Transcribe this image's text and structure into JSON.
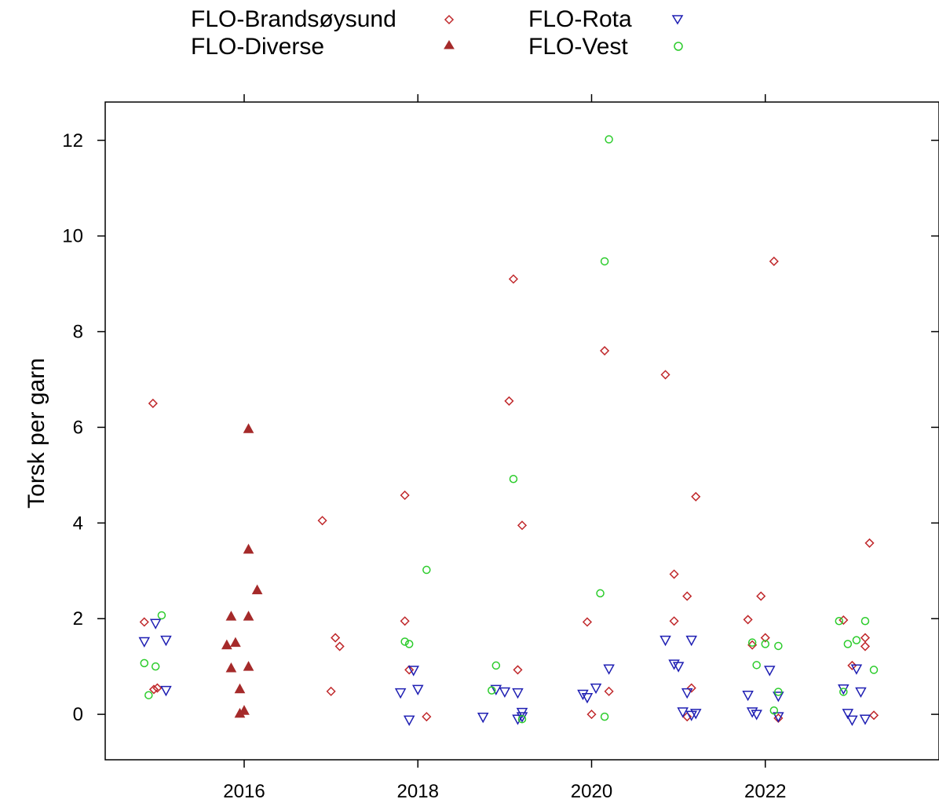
{
  "chart_data": {
    "type": "scatter",
    "title": "",
    "xlabel": "",
    "ylabel": "Torsk per garn",
    "xlim": [
      2014.4,
      2024.0
    ],
    "ylim": [
      -0.95,
      12.8
    ],
    "x_ticks": [
      2016,
      2018,
      2020,
      2022
    ],
    "y_ticks": [
      0,
      2,
      4,
      6,
      8,
      10,
      12
    ],
    "grid": false,
    "legend_position": "top",
    "series": [
      {
        "name": "FLO-Brandsøysund",
        "marker": "diamond-open",
        "color": "#c0282b",
        "points": [
          [
            2014.85,
            1.93
          ],
          [
            2014.95,
            6.5
          ],
          [
            2014.96,
            0.52
          ],
          [
            2015.0,
            0.55
          ],
          [
            2016.9,
            4.05
          ],
          [
            2017.0,
            0.48
          ],
          [
            2017.05,
            1.6
          ],
          [
            2017.1,
            1.42
          ],
          [
            2017.85,
            4.58
          ],
          [
            2017.85,
            1.95
          ],
          [
            2017.9,
            0.93
          ],
          [
            2018.1,
            -0.05
          ],
          [
            2019.05,
            6.55
          ],
          [
            2019.1,
            9.1
          ],
          [
            2019.15,
            0.93
          ],
          [
            2019.2,
            3.95
          ],
          [
            2019.95,
            1.93
          ],
          [
            2020.0,
            0.0
          ],
          [
            2020.15,
            7.6
          ],
          [
            2020.2,
            0.48
          ],
          [
            2020.85,
            7.1
          ],
          [
            2020.95,
            2.93
          ],
          [
            2020.95,
            1.95
          ],
          [
            2021.1,
            2.47
          ],
          [
            2021.1,
            -0.05
          ],
          [
            2021.15,
            0.55
          ],
          [
            2021.2,
            4.55
          ],
          [
            2021.8,
            1.98
          ],
          [
            2021.85,
            1.45
          ],
          [
            2021.95,
            2.47
          ],
          [
            2022.0,
            1.6
          ],
          [
            2022.1,
            9.47
          ],
          [
            2022.15,
            -0.08
          ],
          [
            2022.9,
            1.97
          ],
          [
            2023.0,
            1.02
          ],
          [
            2023.15,
            1.6
          ],
          [
            2023.15,
            1.42
          ],
          [
            2023.2,
            3.58
          ],
          [
            2023.25,
            -0.02
          ]
        ]
      },
      {
        "name": "FLO-Diverse",
        "marker": "triangle-filled",
        "color": "#a52a2a",
        "points": [
          [
            2015.8,
            1.45
          ],
          [
            2015.85,
            2.05
          ],
          [
            2015.85,
            0.97
          ],
          [
            2015.9,
            1.5
          ],
          [
            2015.95,
            0.02
          ],
          [
            2015.95,
            0.53
          ],
          [
            2016.0,
            0.08
          ],
          [
            2016.05,
            5.97
          ],
          [
            2016.05,
            3.45
          ],
          [
            2016.05,
            2.05
          ],
          [
            2016.05,
            1.0
          ],
          [
            2016.15,
            2.6
          ]
        ]
      },
      {
        "name": "FLO-Rota",
        "marker": "triangle-down-open",
        "color": "#1f1fb3",
        "points": [
          [
            2014.85,
            1.52
          ],
          [
            2014.98,
            1.9
          ],
          [
            2015.1,
            1.55
          ],
          [
            2015.1,
            0.5
          ],
          [
            2017.8,
            0.45
          ],
          [
            2017.9,
            -0.12
          ],
          [
            2017.95,
            0.92
          ],
          [
            2018.0,
            0.52
          ],
          [
            2018.75,
            -0.06
          ],
          [
            2018.9,
            0.52
          ],
          [
            2019.0,
            0.47
          ],
          [
            2019.15,
            0.45
          ],
          [
            2019.15,
            -0.1
          ],
          [
            2019.2,
            0.04
          ],
          [
            2019.2,
            -0.05
          ],
          [
            2019.9,
            0.42
          ],
          [
            2019.95,
            0.35
          ],
          [
            2020.05,
            0.55
          ],
          [
            2020.2,
            0.95
          ],
          [
            2020.85,
            1.55
          ],
          [
            2020.95,
            1.05
          ],
          [
            2021.0,
            1.0
          ],
          [
            2021.05,
            0.05
          ],
          [
            2021.1,
            0.45
          ],
          [
            2021.15,
            1.55
          ],
          [
            2021.15,
            -0.02
          ],
          [
            2021.2,
            0.02
          ],
          [
            2021.8,
            0.4
          ],
          [
            2021.85,
            0.05
          ],
          [
            2021.9,
            0.0
          ],
          [
            2022.05,
            0.92
          ],
          [
            2022.15,
            0.38
          ],
          [
            2022.15,
            -0.05
          ],
          [
            2022.9,
            0.53
          ],
          [
            2022.95,
            0.02
          ],
          [
            2023.0,
            -0.12
          ],
          [
            2023.05,
            0.95
          ],
          [
            2023.1,
            0.47
          ],
          [
            2023.15,
            -0.1
          ]
        ]
      },
      {
        "name": "FLO-Vest",
        "marker": "circle-open",
        "color": "#2bcc2b",
        "points": [
          [
            2014.85,
            1.07
          ],
          [
            2014.9,
            0.4
          ],
          [
            2014.98,
            1.0
          ],
          [
            2015.05,
            2.07
          ],
          [
            2017.85,
            1.52
          ],
          [
            2017.9,
            1.47
          ],
          [
            2018.1,
            3.02
          ],
          [
            2018.85,
            0.5
          ],
          [
            2018.9,
            1.02
          ],
          [
            2019.1,
            4.92
          ],
          [
            2019.2,
            -0.1
          ],
          [
            2020.1,
            2.53
          ],
          [
            2020.15,
            -0.05
          ],
          [
            2020.15,
            9.47
          ],
          [
            2020.2,
            12.02
          ],
          [
            2021.85,
            1.5
          ],
          [
            2021.9,
            1.03
          ],
          [
            2022.0,
            1.47
          ],
          [
            2022.1,
            0.08
          ],
          [
            2022.15,
            1.43
          ],
          [
            2022.15,
            0.47
          ],
          [
            2022.85,
            1.95
          ],
          [
            2022.9,
            0.47
          ],
          [
            2022.95,
            1.47
          ],
          [
            2023.05,
            1.55
          ],
          [
            2023.15,
            1.95
          ],
          [
            2023.25,
            0.93
          ]
        ]
      }
    ]
  }
}
